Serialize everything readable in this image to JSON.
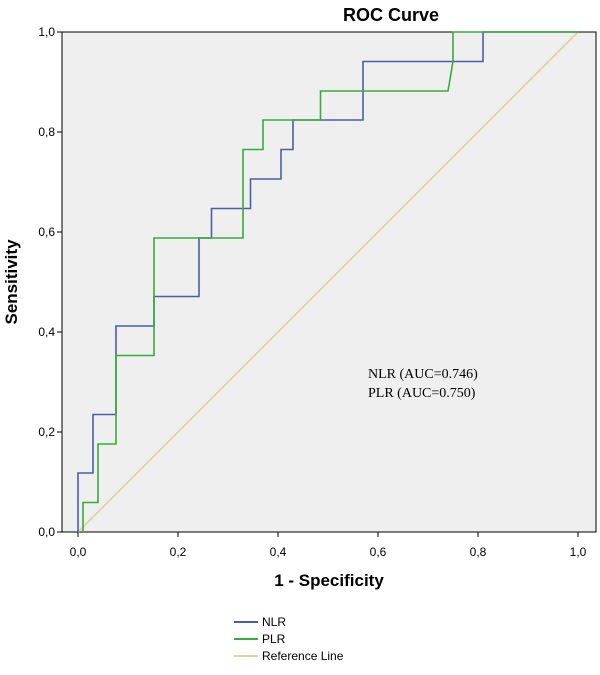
{
  "chart_data": {
    "type": "line",
    "title": "ROC Curve",
    "xlabel": "1 - Specificity",
    "ylabel": "Sensitivity",
    "xlim": [
      0,
      1
    ],
    "ylim": [
      0,
      1
    ],
    "x_ticks": [
      "0,0",
      "0,2",
      "0,4",
      "0,6",
      "0,8",
      "1,0"
    ],
    "y_ticks": [
      "0,0",
      "0,2",
      "0,4",
      "0,6",
      "0,8",
      "1,0"
    ],
    "tick_values": [
      0,
      0.2,
      0.4,
      0.6,
      0.8,
      1.0
    ],
    "grid": false,
    "legend_position": "bottom-left",
    "series": [
      {
        "name": "NLR",
        "color": "#4a5fa8",
        "step": true,
        "points": [
          [
            0,
            0
          ],
          [
            0,
            0.118
          ],
          [
            0.03,
            0.118
          ],
          [
            0.03,
            0.235
          ],
          [
            0.076,
            0.235
          ],
          [
            0.076,
            0.412
          ],
          [
            0.152,
            0.412
          ],
          [
            0.152,
            0.471
          ],
          [
            0.242,
            0.471
          ],
          [
            0.242,
            0.588
          ],
          [
            0.267,
            0.588
          ],
          [
            0.267,
            0.647
          ],
          [
            0.345,
            0.647
          ],
          [
            0.345,
            0.706
          ],
          [
            0.406,
            0.706
          ],
          [
            0.406,
            0.765
          ],
          [
            0.43,
            0.765
          ],
          [
            0.43,
            0.824
          ],
          [
            0.57,
            0.824
          ],
          [
            0.57,
            0.941
          ],
          [
            0.81,
            0.941
          ],
          [
            0.81,
            1.0
          ],
          [
            1.0,
            1.0
          ]
        ]
      },
      {
        "name": "PLR",
        "color": "#3aab3a",
        "step": true,
        "points": [
          [
            0.01,
            0
          ],
          [
            0.01,
            0.059
          ],
          [
            0.04,
            0.059
          ],
          [
            0.04,
            0.176
          ],
          [
            0.076,
            0.176
          ],
          [
            0.076,
            0.353
          ],
          [
            0.152,
            0.353
          ],
          [
            0.152,
            0.588
          ],
          [
            0.33,
            0.588
          ],
          [
            0.33,
            0.765
          ],
          [
            0.37,
            0.765
          ],
          [
            0.37,
            0.824
          ],
          [
            0.485,
            0.824
          ],
          [
            0.485,
            0.882
          ],
          [
            0.74,
            0.882
          ],
          [
            0.75,
            0.941
          ],
          [
            0.75,
            1.0
          ],
          [
            1.0,
            1.0
          ]
        ]
      },
      {
        "name": "Reference Line",
        "color": "#e0d0a8",
        "step": false,
        "points": [
          [
            0,
            0
          ],
          [
            1,
            1
          ]
        ]
      }
    ],
    "annotations": [
      "NLR (AUC=0.746)",
      "PLR (AUC=0.750)"
    ]
  },
  "colors": {
    "plot_background": "#efefef",
    "plot_border": "#000000"
  }
}
